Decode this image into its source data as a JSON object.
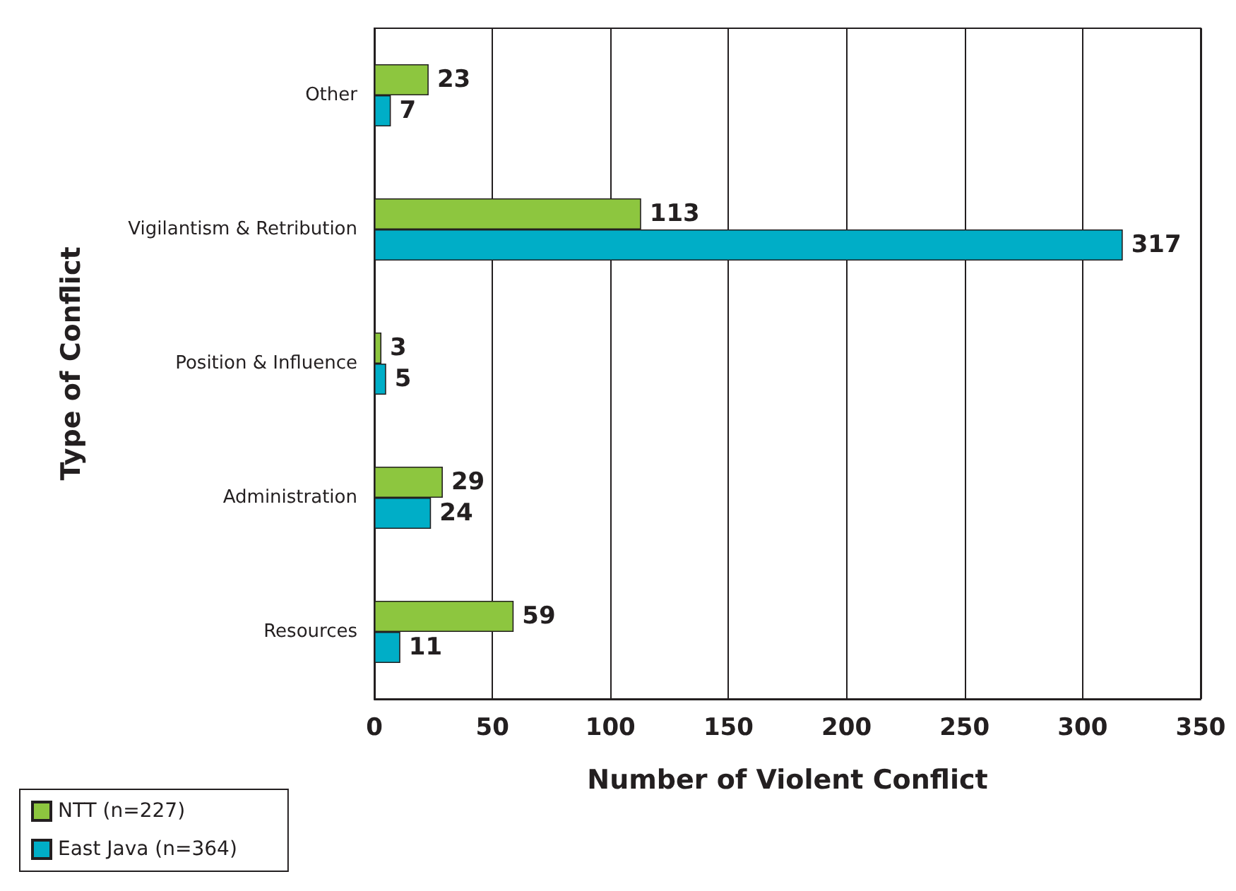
{
  "chart_data": {
    "type": "bar",
    "orientation": "horizontal",
    "xlabel": "Number of Violent Conflict",
    "ylabel": "Type of Conflict",
    "categories": [
      "Other",
      "Vigilantism & Retribution",
      "Position & Influence",
      "Administration",
      "Resources"
    ],
    "series": [
      {
        "name": "NTT (n=227)",
        "color": "#8dc63f",
        "values": [
          23,
          113,
          3,
          29,
          59
        ]
      },
      {
        "name": "East Java (n=364)",
        "color": "#00aec7",
        "values": [
          7,
          317,
          5,
          24,
          11
        ]
      }
    ],
    "xlim": [
      0,
      350
    ],
    "xticks": [
      0,
      50,
      100,
      150,
      200,
      250,
      300,
      350
    ],
    "grid": "x",
    "legend": "bottom left",
    "data_labels": true
  }
}
